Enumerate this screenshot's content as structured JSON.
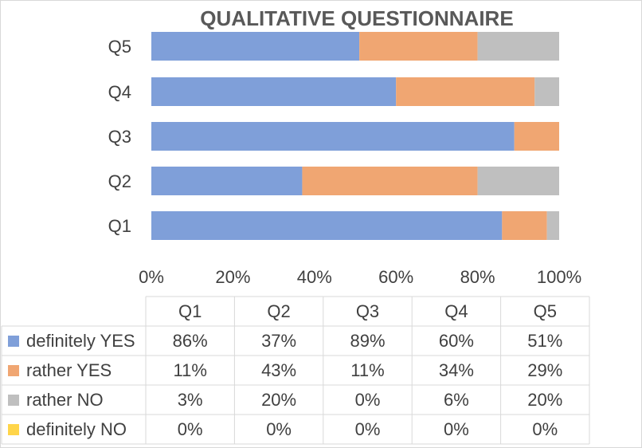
{
  "chart_data": {
    "type": "bar",
    "orientation": "horizontal",
    "stacked": true,
    "percent_stacked": true,
    "title": "QUALITATIVE QUESTIONNAIRE",
    "categories": [
      "Q1",
      "Q2",
      "Q3",
      "Q4",
      "Q5"
    ],
    "x_ticks": [
      "0%",
      "20%",
      "40%",
      "60%",
      "80%",
      "100%"
    ],
    "xlim": [
      0,
      100
    ],
    "grid": false,
    "legend": "data-table-below",
    "series": [
      {
        "name": "definitely YES",
        "color": "#7f9fd9",
        "values": [
          86,
          37,
          89,
          60,
          51
        ]
      },
      {
        "name": "rather YES",
        "color": "#f0a672",
        "values": [
          11,
          43,
          11,
          34,
          29
        ]
      },
      {
        "name": "rather NO",
        "color": "#bfbfbf",
        "values": [
          3,
          20,
          0,
          6,
          20
        ]
      },
      {
        "name": "definitely NO",
        "color": "#ffd54a",
        "values": [
          0,
          0,
          0,
          0,
          0
        ]
      }
    ],
    "table": {
      "header": [
        "Q1",
        "Q2",
        "Q3",
        "Q4",
        "Q5"
      ],
      "rows": [
        [
          "86%",
          "37%",
          "89%",
          "60%",
          "51%"
        ],
        [
          "11%",
          "43%",
          "11%",
          "34%",
          "29%"
        ],
        [
          "3%",
          "20%",
          "0%",
          "6%",
          "20%"
        ],
        [
          "0%",
          "0%",
          "0%",
          "0%",
          "0%"
        ]
      ]
    }
  }
}
